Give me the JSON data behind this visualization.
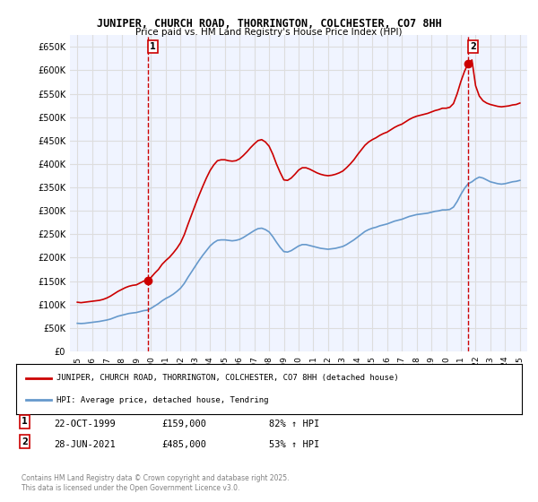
{
  "title": "JUNIPER, CHURCH ROAD, THORRINGTON, COLCHESTER, CO7 8HH",
  "subtitle": "Price paid vs. HM Land Registry's House Price Index (HPI)",
  "sale1_date": "22-OCT-1999",
  "sale1_price": 159000,
  "sale1_label": "82% ↑ HPI",
  "sale2_date": "28-JUN-2021",
  "sale2_price": 485000,
  "sale2_label": "53% ↑ HPI",
  "legend_line1": "JUNIPER, CHURCH ROAD, THORRINGTON, COLCHESTER, CO7 8HH (detached house)",
  "legend_line2": "HPI: Average price, detached house, Tendring",
  "footer": "Contains HM Land Registry data © Crown copyright and database right 2025.\nThis data is licensed under the Open Government Licence v3.0.",
  "red_color": "#cc0000",
  "blue_color": "#6699cc",
  "grid_color": "#dddddd",
  "bg_color": "#ffffff",
  "plot_bg": "#f0f4ff",
  "ylim": [
    0,
    675000
  ],
  "ytick_step": 50000,
  "sale1_year": 1999.8,
  "sale2_year": 2021.5,
  "hpi_data": {
    "years": [
      1995,
      1995.25,
      1995.5,
      1995.75,
      1996,
      1996.25,
      1996.5,
      1996.75,
      1997,
      1997.25,
      1997.5,
      1997.75,
      1998,
      1998.25,
      1998.5,
      1998.75,
      1999,
      1999.25,
      1999.5,
      1999.75,
      2000,
      2000.25,
      2000.5,
      2000.75,
      2001,
      2001.25,
      2001.5,
      2001.75,
      2002,
      2002.25,
      2002.5,
      2002.75,
      2003,
      2003.25,
      2003.5,
      2003.75,
      2004,
      2004.25,
      2004.5,
      2004.75,
      2005,
      2005.25,
      2005.5,
      2005.75,
      2006,
      2006.25,
      2006.5,
      2006.75,
      2007,
      2007.25,
      2007.5,
      2007.75,
      2008,
      2008.25,
      2008.5,
      2008.75,
      2009,
      2009.25,
      2009.5,
      2009.75,
      2010,
      2010.25,
      2010.5,
      2010.75,
      2011,
      2011.25,
      2011.5,
      2011.75,
      2012,
      2012.25,
      2012.5,
      2012.75,
      2013,
      2013.25,
      2013.5,
      2013.75,
      2014,
      2014.25,
      2014.5,
      2014.75,
      2015,
      2015.25,
      2015.5,
      2015.75,
      2016,
      2016.25,
      2016.5,
      2016.75,
      2017,
      2017.25,
      2017.5,
      2017.75,
      2018,
      2018.25,
      2018.5,
      2018.75,
      2019,
      2019.25,
      2019.5,
      2019.75,
      2020,
      2020.25,
      2020.5,
      2020.75,
      2021,
      2021.25,
      2021.5,
      2021.75,
      2022,
      2022.25,
      2022.5,
      2022.75,
      2023,
      2023.25,
      2023.5,
      2023.75,
      2024,
      2024.25,
      2024.5,
      2024.75,
      2025
    ],
    "values": [
      60000,
      59500,
      60000,
      61000,
      62000,
      63000,
      64000,
      65500,
      67000,
      69000,
      72000,
      75000,
      77000,
      79000,
      81000,
      82000,
      83000,
      85000,
      87000,
      88000,
      92000,
      97000,
      102000,
      108000,
      113000,
      117000,
      122000,
      128000,
      135000,
      145000,
      158000,
      170000,
      182000,
      194000,
      205000,
      215000,
      225000,
      232000,
      237000,
      238000,
      238000,
      237000,
      236000,
      237000,
      239000,
      243000,
      248000,
      253000,
      258000,
      262000,
      263000,
      260000,
      255000,
      245000,
      233000,
      222000,
      213000,
      212000,
      215000,
      220000,
      225000,
      228000,
      228000,
      226000,
      224000,
      222000,
      220000,
      219000,
      218000,
      219000,
      220000,
      222000,
      224000,
      228000,
      233000,
      238000,
      244000,
      250000,
      256000,
      260000,
      263000,
      265000,
      268000,
      270000,
      272000,
      275000,
      278000,
      280000,
      282000,
      285000,
      288000,
      290000,
      292000,
      293000,
      294000,
      295000,
      297000,
      299000,
      300000,
      302000,
      302000,
      303000,
      308000,
      320000,
      335000,
      348000,
      358000,
      362000,
      368000,
      372000,
      370000,
      366000,
      362000,
      360000,
      358000,
      357000,
      358000,
      360000,
      362000,
      363000,
      365000
    ]
  },
  "red_data": {
    "years": [
      1995,
      1995.25,
      1995.5,
      1995.75,
      1996,
      1996.25,
      1996.5,
      1996.75,
      1997,
      1997.25,
      1997.5,
      1997.75,
      1998,
      1998.25,
      1998.5,
      1998.75,
      1999,
      1999.25,
      1999.5,
      1999.75,
      2000,
      2000.25,
      2000.5,
      2000.75,
      2001,
      2001.25,
      2001.5,
      2001.75,
      2002,
      2002.25,
      2002.5,
      2002.75,
      2003,
      2003.25,
      2003.5,
      2003.75,
      2004,
      2004.25,
      2004.5,
      2004.75,
      2005,
      2005.25,
      2005.5,
      2005.75,
      2006,
      2006.25,
      2006.5,
      2006.75,
      2007,
      2007.25,
      2007.5,
      2007.75,
      2008,
      2008.25,
      2008.5,
      2008.75,
      2009,
      2009.25,
      2009.5,
      2009.75,
      2010,
      2010.25,
      2010.5,
      2010.75,
      2011,
      2011.25,
      2011.5,
      2011.75,
      2012,
      2012.25,
      2012.5,
      2012.75,
      2013,
      2013.25,
      2013.5,
      2013.75,
      2014,
      2014.25,
      2014.5,
      2014.75,
      2015,
      2015.25,
      2015.5,
      2015.75,
      2016,
      2016.25,
      2016.5,
      2016.75,
      2017,
      2017.25,
      2017.5,
      2017.75,
      2018,
      2018.25,
      2018.5,
      2018.75,
      2019,
      2019.25,
      2019.5,
      2019.75,
      2020,
      2020.25,
      2020.5,
      2020.75,
      2021,
      2021.25,
      2021.5,
      2021.75,
      2022,
      2022.25,
      2022.5,
      2022.75,
      2023,
      2023.25,
      2023.5,
      2023.75,
      2024,
      2024.25,
      2024.5,
      2024.75,
      2025
    ],
    "values": [
      105000,
      104000,
      105000,
      106000,
      107000,
      108000,
      109000,
      111000,
      114000,
      118000,
      123000,
      128000,
      132000,
      136000,
      139000,
      141000,
      142000,
      146000,
      150000,
      152000,
      158000,
      167000,
      175000,
      186000,
      194000,
      201000,
      210000,
      220000,
      232000,
      249000,
      271000,
      292000,
      313000,
      333000,
      352000,
      370000,
      386000,
      398000,
      407000,
      409000,
      409000,
      407000,
      406000,
      407000,
      411000,
      418000,
      426000,
      435000,
      443000,
      450000,
      452000,
      447000,
      438000,
      421000,
      400000,
      382000,
      366000,
      365000,
      370000,
      378000,
      387000,
      392000,
      392000,
      389000,
      385000,
      381000,
      378000,
      376000,
      375000,
      376000,
      378000,
      381000,
      385000,
      392000,
      400000,
      409000,
      420000,
      430000,
      440000,
      447000,
      452000,
      456000,
      461000,
      465000,
      468000,
      473000,
      478000,
      482000,
      485000,
      490000,
      495000,
      499000,
      502000,
      504000,
      506000,
      508000,
      511000,
      514000,
      516000,
      519000,
      519000,
      521000,
      529000,
      550000,
      576000,
      598000,
      615000,
      622000,
      567000,
      545000,
      535000,
      530000,
      527000,
      525000,
      523000,
      522000,
      523000,
      524000,
      526000,
      527000,
      530000
    ]
  }
}
